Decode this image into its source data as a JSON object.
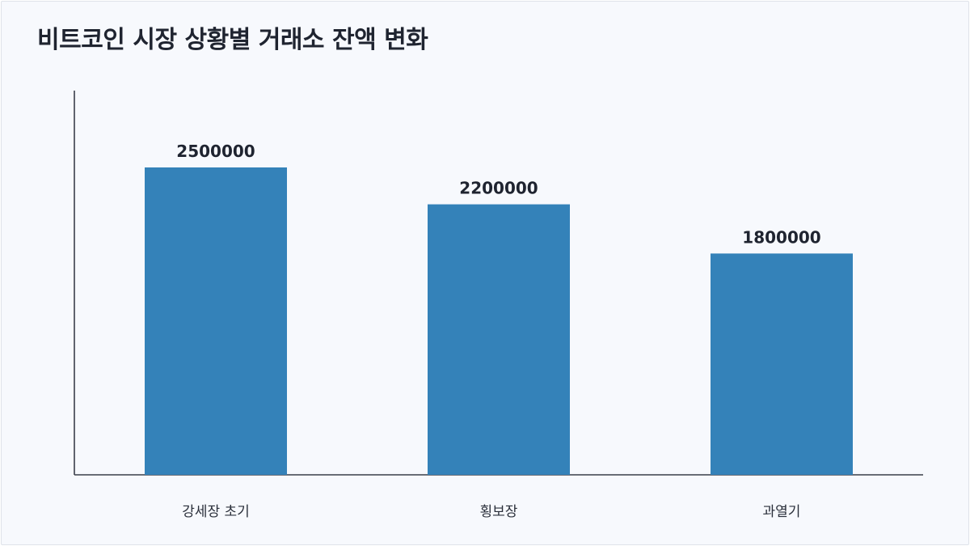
{
  "title": "비트코인 시장 상황별 거래소 잔액 변화",
  "colors": {
    "bar": "#3482b9",
    "background": "#f7f9fd",
    "axis": "#3a3f4a",
    "text": "#1f2430"
  },
  "chart_data": {
    "type": "bar",
    "title": "비트코인 시장 상황별 거래소 잔액 변화",
    "categories": [
      "강세장 초기",
      "횡보장",
      "과열기"
    ],
    "values": [
      2500000,
      2200000,
      1800000
    ],
    "value_labels": [
      "2500000",
      "2200000",
      "1800000"
    ],
    "xlabel": "",
    "ylabel": "",
    "ylim": [
      0,
      3125000
    ],
    "grid": false,
    "legend": "none",
    "data_labels": true
  }
}
